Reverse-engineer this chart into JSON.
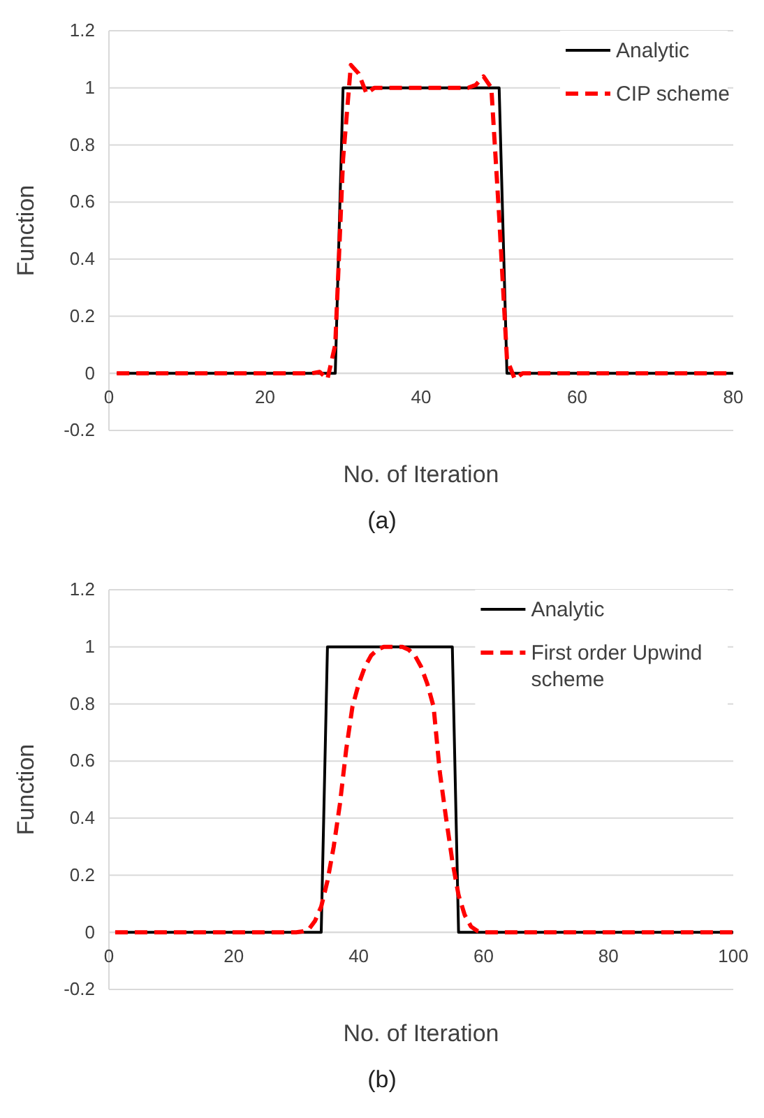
{
  "chart_data": [
    {
      "type": "line",
      "xlabel": "No. of Iteration",
      "ylabel": "Function",
      "annotations": [
        "(a)"
      ],
      "xlim": [
        0,
        80
      ],
      "xticks": [
        0,
        20,
        40,
        60,
        80
      ],
      "ylim": [
        -0.2,
        1.2
      ],
      "yticks": [
        -0.2,
        0,
        0.2,
        0.4,
        0.6,
        0.8,
        1,
        1.2
      ],
      "grid": "y",
      "legend": "top right",
      "series": [
        {
          "name": "Analytic",
          "color": "#000000",
          "line_style": "solid",
          "x": [
            1,
            29,
            30,
            50,
            51,
            80
          ],
          "values": [
            0,
            0,
            1,
            1,
            0,
            0
          ]
        },
        {
          "name": "CIP scheme",
          "color": "#ff0000",
          "line_style": "dashed",
          "x": [
            1,
            10,
            20,
            26,
            27,
            28,
            29,
            30,
            31,
            32,
            33,
            34,
            35,
            40,
            45,
            46,
            47,
            48,
            49,
            50,
            51,
            52,
            53,
            54,
            60,
            70,
            80
          ],
          "values": [
            0,
            0,
            0,
            0,
            0.005,
            -0.02,
            0.1,
            0.75,
            1.08,
            1.05,
            0.98,
            1.0,
            1.0,
            1.0,
            1.0,
            1.0,
            1.01,
            1.04,
            1.0,
            0.55,
            0.05,
            -0.02,
            0,
            0,
            0,
            0,
            0
          ]
        }
      ]
    },
    {
      "type": "line",
      "xlabel": "No. of Iteration",
      "ylabel": "Function",
      "annotations": [
        "(b)"
      ],
      "xlim": [
        0,
        100
      ],
      "xticks": [
        0,
        20,
        40,
        60,
        80,
        100
      ],
      "ylim": [
        -0.2,
        1.2
      ],
      "yticks": [
        -0.2,
        0,
        0.2,
        0.4,
        0.6,
        0.8,
        1,
        1.2
      ],
      "grid": "y",
      "legend": "top right",
      "series": [
        {
          "name": "Analytic",
          "color": "#000000",
          "line_style": "solid",
          "x": [
            1,
            34,
            35,
            55,
            56,
            100
          ],
          "values": [
            0,
            0,
            1,
            1,
            0,
            0
          ]
        },
        {
          "name": "First order Upwind scheme",
          "color": "#ff0000",
          "line_style": "dashed",
          "x": [
            1,
            10,
            20,
            30,
            31,
            32,
            33,
            34,
            35,
            36,
            37,
            38,
            39,
            40,
            41,
            42,
            43,
            44,
            45,
            46,
            47,
            48,
            49,
            50,
            51,
            52,
            53,
            54,
            55,
            56,
            57,
            58,
            59,
            60,
            70,
            80,
            90,
            100
          ],
          "values": [
            0,
            0,
            0,
            0,
            0.003,
            0.01,
            0.04,
            0.09,
            0.18,
            0.3,
            0.45,
            0.64,
            0.79,
            0.87,
            0.93,
            0.97,
            0.99,
            1.0,
            1.0,
            1.0,
            1.0,
            0.99,
            0.97,
            0.93,
            0.87,
            0.79,
            0.56,
            0.4,
            0.25,
            0.13,
            0.06,
            0.02,
            0.005,
            0,
            0,
            0,
            0,
            0
          ]
        }
      ]
    }
  ]
}
